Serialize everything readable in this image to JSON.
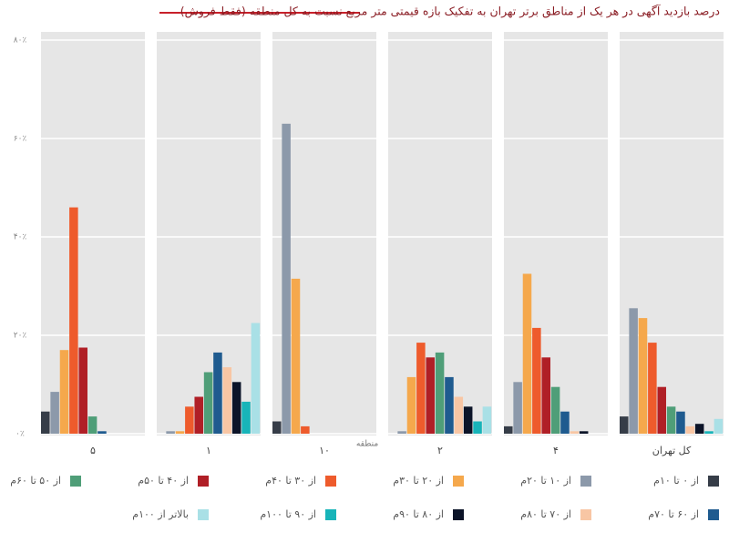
{
  "chart_data": {
    "type": "bar",
    "title": "درصد بازدید آگهی در هر یک از مناطق برتر تهران به تفکیک بازه قیمتی متر مربع نسبت به کل منطقه (فقط فروش)",
    "x_label": "منطقه",
    "categories": [
      "۵",
      "۱",
      "۱۰",
      "۲",
      "۴",
      "کل تهران"
    ],
    "ylim": [
      0,
      80
    ],
    "yticks": [
      {
        "value": 0,
        "label": "۰٪"
      },
      {
        "value": 20,
        "label": "۲۰٪"
      },
      {
        "value": 40,
        "label": "۴۰٪"
      },
      {
        "value": 60,
        "label": "۶۰٪"
      },
      {
        "value": 80,
        "label": "۸۰٪"
      }
    ],
    "grid": true,
    "series": [
      {
        "name": "از ۰ تا ۱۰م",
        "color": "#363d48",
        "values": [
          4.5,
          0,
          2.5,
          0,
          1.5,
          3.5
        ]
      },
      {
        "name": "از ۱۰ تا ۲۰م",
        "color": "#8c99aa",
        "values": [
          8.5,
          0.5,
          63,
          0.5,
          10.5,
          25.5
        ]
      },
      {
        "name": "از ۲۰ تا ۳۰م",
        "color": "#f5a84c",
        "values": [
          17,
          0.5,
          31.5,
          11.5,
          32.5,
          23.5
        ]
      },
      {
        "name": "از ۳۰ تا ۴۰م",
        "color": "#ee5b2c",
        "values": [
          46,
          5.5,
          1.5,
          18.5,
          21.5,
          18.5
        ]
      },
      {
        "name": "از ۴۰ تا ۵۰م",
        "color": "#b01f26",
        "values": [
          17.5,
          7.5,
          0,
          15.5,
          15.5,
          9.5
        ]
      },
      {
        "name": "از ۵۰ تا ۶۰م",
        "color": "#4f9e78",
        "values": [
          3.5,
          12.5,
          0,
          16.5,
          9.5,
          5.5
        ]
      },
      {
        "name": "از ۶۰ تا ۷۰م",
        "color": "#1f5b8f",
        "values": [
          0.5,
          16.5,
          0,
          11.5,
          4.5,
          4.5
        ]
      },
      {
        "name": "از ۷۰ تا ۸۰م",
        "color": "#f8c6a4",
        "values": [
          0,
          13.5,
          0,
          7.5,
          0.5,
          1.5
        ]
      },
      {
        "name": "از ۸۰ تا ۹۰م",
        "color": "#0c1428",
        "values": [
          0,
          10.5,
          0,
          5.5,
          0.5,
          2
        ]
      },
      {
        "name": "از ۹۰ تا ۱۰۰م",
        "color": "#18b4b9",
        "values": [
          0,
          6.5,
          0,
          2.5,
          0,
          0.5
        ]
      },
      {
        "name": "بالاتر از ۱۰۰م",
        "color": "#a9e0e6",
        "values": [
          0,
          22.5,
          0,
          5.5,
          0,
          3
        ]
      }
    ]
  }
}
